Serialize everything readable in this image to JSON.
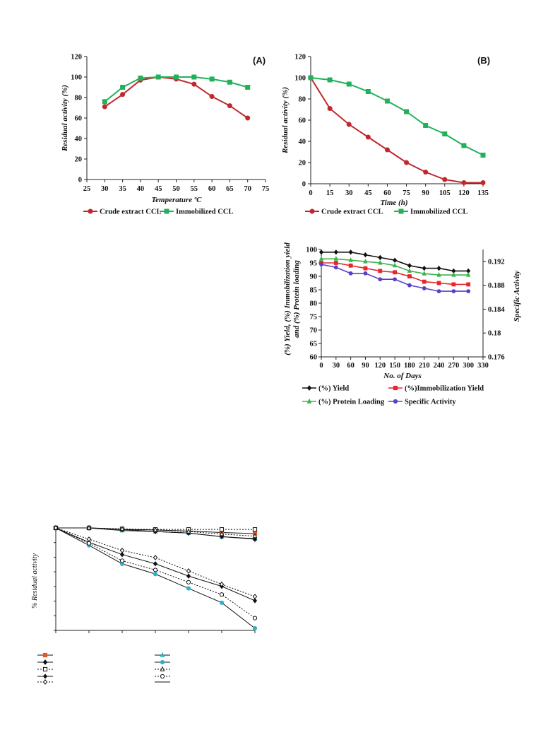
{
  "chart_data": [
    {
      "id": "A",
      "type": "line",
      "panel_label": "(A)",
      "xlabel": "Temperature ºC",
      "ylabel": "Residual activity (%)",
      "xlim": [
        25,
        75
      ],
      "ylim": [
        0,
        120
      ],
      "xticks": [
        25,
        30,
        35,
        40,
        45,
        50,
        55,
        60,
        65,
        70,
        75
      ],
      "yticks": [
        0,
        20,
        40,
        60,
        80,
        100,
        120
      ],
      "legend_position": "bottom",
      "series": [
        {
          "name": "Crude  extract CCL",
          "color": "#c0282d",
          "marker": "circle",
          "x": [
            30,
            35,
            40,
            45,
            50,
            55,
            60,
            65,
            70
          ],
          "y": [
            71,
            83,
            97,
            100,
            98,
            93,
            81,
            72,
            60
          ]
        },
        {
          "name": "Immobilized CCL",
          "color": "#22b15a",
          "marker": "square",
          "x": [
            30,
            35,
            40,
            45,
            50,
            55,
            60,
            65,
            70
          ],
          "y": [
            76,
            90,
            99,
            100,
            100,
            100,
            98,
            95,
            90
          ]
        }
      ]
    },
    {
      "id": "B",
      "type": "line",
      "panel_label": "(B)",
      "xlabel": "Time (h)",
      "ylabel": "Residual activity (%)",
      "xlim": [
        0,
        135
      ],
      "ylim": [
        0,
        120
      ],
      "xticks": [
        0,
        15,
        30,
        45,
        60,
        75,
        90,
        105,
        120,
        135
      ],
      "yticks": [
        0,
        20,
        40,
        60,
        80,
        100,
        120
      ],
      "legend_position": "bottom",
      "series": [
        {
          "name": "Crude extract CCL",
          "color": "#c0282d",
          "marker": "circle",
          "x": [
            0,
            15,
            30,
            45,
            60,
            75,
            90,
            105,
            120,
            135
          ],
          "y": [
            100,
            71,
            56,
            44,
            32,
            20,
            11,
            4,
            1,
            1
          ]
        },
        {
          "name": "Immobilized CCL",
          "color": "#22b15a",
          "marker": "square",
          "x": [
            0,
            15,
            30,
            45,
            60,
            75,
            90,
            105,
            120,
            135
          ],
          "y": [
            100,
            98,
            94,
            87,
            78,
            68,
            55,
            47,
            36,
            27
          ]
        }
      ]
    },
    {
      "id": "C",
      "type": "line",
      "xlabel": "No. of Days",
      "ylabel_line1": "(%) Yield, (%) Immobilization yield",
      "ylabel_line2": "and (%) Protein loading",
      "y2label": "Specific Activity",
      "xlim": [
        0,
        330
      ],
      "ylim": [
        60,
        100
      ],
      "y2lim": [
        0.176,
        0.194
      ],
      "xticks": [
        0,
        30,
        60,
        90,
        120,
        150,
        180,
        210,
        240,
        270,
        300,
        330
      ],
      "yticks": [
        60,
        65,
        70,
        75,
        80,
        85,
        90,
        95,
        100
      ],
      "y2ticks": [
        "0.176",
        "0.18",
        "0.184",
        "0.188",
        "0.192"
      ],
      "legend_position": "bottom",
      "series": [
        {
          "name": "(%) Yield",
          "color": "#111111",
          "marker": "diamond",
          "axis": "left",
          "x": [
            0,
            30,
            60,
            90,
            120,
            150,
            180,
            210,
            240,
            270,
            300
          ],
          "y": [
            99,
            99,
            99,
            98,
            97,
            96,
            94,
            93,
            93,
            92,
            92
          ]
        },
        {
          "name": "(%)Immobilization Yield",
          "color": "#e8262b",
          "marker": "square",
          "axis": "left",
          "x": [
            0,
            30,
            60,
            90,
            120,
            150,
            180,
            210,
            240,
            270,
            300
          ],
          "y": [
            95,
            95,
            94,
            93,
            92,
            91.5,
            90,
            88,
            87.5,
            87,
            87
          ]
        },
        {
          "name": "(%) Protein Loading",
          "color": "#3cb34a",
          "marker": "triangle",
          "axis": "left",
          "x": [
            0,
            30,
            60,
            90,
            120,
            150,
            180,
            210,
            240,
            270,
            300
          ],
          "y": [
            96.5,
            96.5,
            96,
            95.5,
            95,
            94,
            92,
            91,
            90.5,
            90.5,
            90.5
          ]
        },
        {
          "name": "Specific Activity",
          "color": "#5b3fc4",
          "marker": "circle",
          "axis": "right",
          "x": [
            0,
            30,
            60,
            90,
            120,
            150,
            180,
            210,
            240,
            270,
            300
          ],
          "y": [
            0.1915,
            0.191,
            0.19,
            0.19,
            0.189,
            0.189,
            0.188,
            0.1875,
            0.187,
            0.187,
            0.187
          ]
        }
      ]
    },
    {
      "id": "D",
      "type": "line",
      "ylabel": "% Residual activity",
      "ylim": [
        0,
        100
      ],
      "xpoints": 7,
      "legend_position": "bottom",
      "series": [
        {
          "marker": "filled-square",
          "color": "#e8562b",
          "line": "solid",
          "y": [
            100,
            100,
            98.5,
            98,
            97,
            95.5,
            94.5
          ]
        },
        {
          "marker": "filled-triangle",
          "color": "#2bb3c8",
          "line": "solid",
          "y": [
            100,
            100,
            97.5,
            96.5,
            95,
            91.5,
            89.5
          ]
        },
        {
          "marker": "filled-diamond",
          "color": "#111111",
          "line": "solid",
          "y": [
            100,
            100,
            98.5,
            96.5,
            95,
            91.5,
            89
          ]
        },
        {
          "marker": "filled-circle",
          "color": "#2bb3c8",
          "line": "solid",
          "y": [
            100,
            83,
            65,
            55,
            41,
            27,
            2
          ]
        },
        {
          "marker": "open-square",
          "color": "#111111",
          "line": "dotted",
          "y": [
            100,
            100,
            99,
            98.5,
            98.5,
            98.5,
            98.5
          ]
        },
        {
          "marker": "open-triangle",
          "color": "#111111",
          "line": "dotted",
          "y": [
            100,
            100,
            99,
            98,
            96.5,
            94,
            92
          ]
        },
        {
          "marker": "small-diamond",
          "color": "#111111",
          "line": "solid",
          "y": [
            100,
            86,
            74,
            65,
            53,
            43,
            29
          ]
        },
        {
          "marker": "open-circle",
          "color": "#111111",
          "line": "dotted",
          "y": [
            100,
            85,
            68,
            59,
            47,
            35,
            12
          ]
        },
        {
          "marker": "open-diamond",
          "color": "#111111",
          "line": "dotted",
          "y": [
            100,
            89,
            78,
            71,
            58,
            45,
            33
          ]
        }
      ]
    }
  ]
}
